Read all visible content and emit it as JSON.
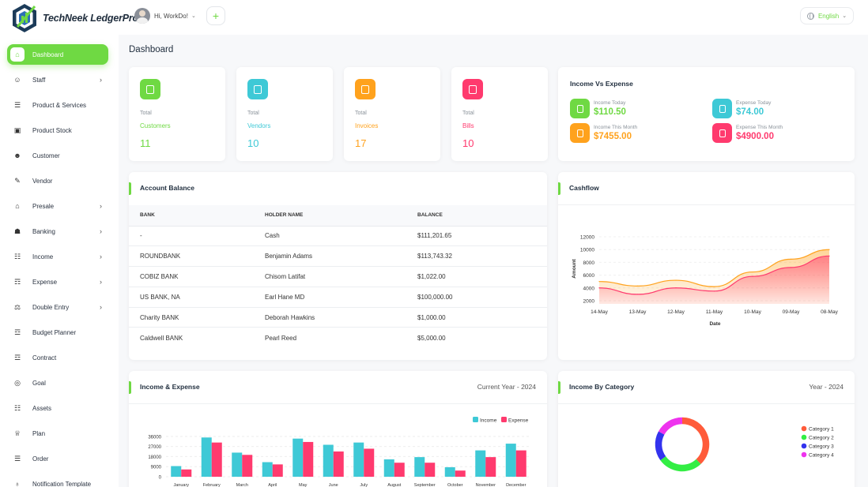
{
  "brand": {
    "name": "TechNeek LedgerPro"
  },
  "header": {
    "greeting": "Hi, WorkDo!",
    "language": "English"
  },
  "sidebar": {
    "items": [
      {
        "label": "Dashboard",
        "icon": "home-icon",
        "active": true,
        "has_submenu": false
      },
      {
        "label": "Staff",
        "icon": "users-icon",
        "has_submenu": true
      },
      {
        "label": "Product & Services",
        "icon": "cart-icon",
        "has_submenu": false
      },
      {
        "label": "Product Stock",
        "icon": "box-icon",
        "has_submenu": false
      },
      {
        "label": "Customer",
        "icon": "user-plus-icon",
        "has_submenu": false
      },
      {
        "label": "Vendor",
        "icon": "note-icon",
        "has_submenu": false
      },
      {
        "label": "Presale",
        "icon": "bank-icon",
        "has_submenu": true
      },
      {
        "label": "Banking",
        "icon": "building-icon",
        "has_submenu": true
      },
      {
        "label": "Income",
        "icon": "file-icon",
        "has_submenu": true
      },
      {
        "label": "Expense",
        "icon": "receipt-icon",
        "has_submenu": true
      },
      {
        "label": "Double Entry",
        "icon": "scale-icon",
        "has_submenu": true
      },
      {
        "label": "Budget Planner",
        "icon": "budget-icon",
        "has_submenu": false
      },
      {
        "label": "Contract",
        "icon": "contract-icon",
        "has_submenu": false
      },
      {
        "label": "Goal",
        "icon": "target-icon",
        "has_submenu": false
      },
      {
        "label": "Assets",
        "icon": "calendar-icon",
        "has_submenu": false
      },
      {
        "label": "Plan",
        "icon": "trophy-icon",
        "has_submenu": false
      },
      {
        "label": "Order",
        "icon": "order-icon",
        "has_submenu": false
      },
      {
        "label": "Notification Template",
        "icon": "bell-icon",
        "has_submenu": false
      }
    ]
  },
  "page": {
    "title": "Dashboard"
  },
  "stats": [
    {
      "small": "Total",
      "label": "Customers",
      "value": "11",
      "color": "#6fd943",
      "icon": "users-icon"
    },
    {
      "small": "Total",
      "label": "Vendors",
      "value": "10",
      "color": "#3ec9d6",
      "icon": "note-icon"
    },
    {
      "small": "Total",
      "label": "Invoices",
      "value": "17",
      "color": "#ffa21d",
      "icon": "file-icon"
    },
    {
      "small": "Total",
      "label": "Bills",
      "value": "10",
      "color": "#ff3a6e",
      "icon": "receipt-icon"
    }
  ],
  "income_vs_expense": {
    "title": "Income Vs Expense",
    "items": [
      {
        "label": "Income Today",
        "value": "$110.50",
        "color": "#6fd943"
      },
      {
        "label": "Expense Today",
        "value": "$74.00",
        "color": "#3ec9d6"
      },
      {
        "label": "Income This Month",
        "value": "$7455.00",
        "color": "#ffa21d"
      },
      {
        "label": "Expense This Month",
        "value": "$4900.00",
        "color": "#ff3a6e"
      }
    ]
  },
  "account_balance": {
    "title": "Account Balance",
    "columns": [
      "BANK",
      "HOLDER NAME",
      "BALANCE"
    ],
    "rows": [
      [
        "-",
        "Cash",
        "$111,201.65"
      ],
      [
        "ROUNDBANK",
        "Benjamin Adams",
        "$113,743.32"
      ],
      [
        "COBIZ BANK",
        "Chisom Latifat",
        "$1,022.00"
      ],
      [
        "US BANK, NA",
        "Earl Hane MD",
        "$100,000.00"
      ],
      [
        "Charity BANK",
        "Deborah Hawkins",
        "$1,000.00"
      ],
      [
        "Caldwell BANK",
        "Pearl Reed",
        "$5,000.00"
      ]
    ]
  },
  "cashflow": {
    "title": "Cashflow"
  },
  "income_expense": {
    "title": "Income & Expense",
    "period": "Current Year - 2024"
  },
  "income_by_category": {
    "title": "Income By Category",
    "period": "Year - 2024"
  },
  "chart_data": [
    {
      "type": "area",
      "title": "Cashflow",
      "xlabel": "Date",
      "ylabel": "Amount",
      "categories": [
        "14-May",
        "13-May",
        "12-May",
        "11-May",
        "10-May",
        "09-May",
        "08-May"
      ],
      "yticks": [
        2000,
        4000,
        6000,
        8000,
        10000,
        12000
      ],
      "ylim": [
        1500,
        12500
      ],
      "series": [
        {
          "color": "#ffa21d",
          "values": [
            5000,
            4300,
            5200,
            4200,
            6500,
            8500,
            10000
          ]
        },
        {
          "color": "#ff3a6e",
          "values": [
            4000,
            3000,
            4000,
            3500,
            5800,
            7200,
            9000
          ]
        }
      ]
    },
    {
      "type": "bar",
      "title": "Income & Expense",
      "categories": [
        "January",
        "February",
        "March",
        "April",
        "May",
        "June",
        "July",
        "August",
        "September",
        "October",
        "November",
        "December"
      ],
      "yticks": [
        0,
        9000,
        18000,
        27000,
        36000
      ],
      "ylim": [
        0,
        38000
      ],
      "legend": "top-right",
      "series": [
        {
          "name": "Income",
          "color": "#3ec9d6",
          "values": [
            9500,
            35000,
            21500,
            13000,
            34000,
            28500,
            30500,
            15500,
            17500,
            8500,
            23500,
            29500
          ]
        },
        {
          "name": "Expense",
          "color": "#ff3a6e",
          "values": [
            6500,
            30500,
            19500,
            11000,
            31000,
            22500,
            25000,
            12500,
            12500,
            5500,
            17500,
            23500
          ]
        }
      ]
    },
    {
      "type": "pie",
      "title": "Income By Category",
      "legend": "right",
      "labels": [
        "Category 1",
        "Category 2",
        "Category 3",
        "Category 4"
      ],
      "values": [
        38,
        27,
        18,
        17
      ],
      "colors": [
        "#ff5b3a",
        "#33ee44",
        "#3333ee",
        "#ee33ee"
      ]
    }
  ]
}
